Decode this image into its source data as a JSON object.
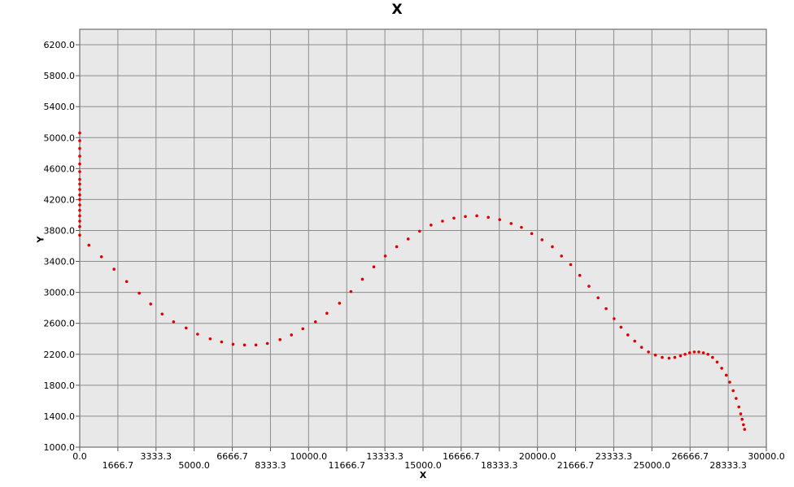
{
  "chart_data": {
    "type": "scatter",
    "title": "X",
    "xlabel": "X",
    "ylabel": "Y",
    "xlim": [
      0,
      30000
    ],
    "ylim": [
      1000,
      6400
    ],
    "grid": true,
    "x_ticks": [
      "0.0",
      "1666.7",
      "3333.3",
      "5000.0",
      "6666.7",
      "8333.3",
      "10000.0",
      "11666.7",
      "13333.3",
      "15000.0",
      "16666.7",
      "18333.3",
      "20000.0",
      "21666.7",
      "23333.3",
      "25000.0",
      "26666.7",
      "28333.3",
      "30000.0"
    ],
    "y_ticks": [
      "1000.0",
      "1400.0",
      "1800.0",
      "2200.0",
      "2600.0",
      "3000.0",
      "3400.0",
      "3800.0",
      "4200.0",
      "4600.0",
      "5000.0",
      "5400.0",
      "5800.0",
      "6200.0"
    ],
    "marker_color": "#e00000",
    "series": [
      {
        "points": [
          [
            0,
            5060
          ],
          [
            0,
            4960
          ],
          [
            0,
            4860
          ],
          [
            0,
            4760
          ],
          [
            0,
            4660
          ],
          [
            0,
            4560
          ],
          [
            0,
            4460
          ],
          [
            0,
            4400
          ],
          [
            0,
            4330
          ],
          [
            0,
            4260
          ],
          [
            0,
            4200
          ],
          [
            0,
            4130
          ],
          [
            0,
            4060
          ],
          [
            0,
            3990
          ],
          [
            0,
            3920
          ],
          [
            0,
            3850
          ],
          [
            0,
            3740
          ],
          [
            400,
            3610
          ],
          [
            950,
            3460
          ],
          [
            1500,
            3300
          ],
          [
            2050,
            3140
          ],
          [
            2600,
            2990
          ],
          [
            3100,
            2850
          ],
          [
            3600,
            2720
          ],
          [
            4100,
            2620
          ],
          [
            4650,
            2540
          ],
          [
            5150,
            2460
          ],
          [
            5700,
            2400
          ],
          [
            6200,
            2360
          ],
          [
            6700,
            2330
          ],
          [
            7200,
            2320
          ],
          [
            7700,
            2320
          ],
          [
            8200,
            2340
          ],
          [
            8750,
            2390
          ],
          [
            9250,
            2450
          ],
          [
            9750,
            2530
          ],
          [
            10300,
            2620
          ],
          [
            10800,
            2730
          ],
          [
            11350,
            2860
          ],
          [
            11850,
            3010
          ],
          [
            12350,
            3170
          ],
          [
            12850,
            3330
          ],
          [
            13350,
            3470
          ],
          [
            13850,
            3590
          ],
          [
            14350,
            3690
          ],
          [
            14850,
            3790
          ],
          [
            15350,
            3870
          ],
          [
            15850,
            3920
          ],
          [
            16350,
            3960
          ],
          [
            16850,
            3980
          ],
          [
            17350,
            3990
          ],
          [
            17850,
            3970
          ],
          [
            18350,
            3940
          ],
          [
            18850,
            3890
          ],
          [
            19300,
            3840
          ],
          [
            19750,
            3760
          ],
          [
            20200,
            3680
          ],
          [
            20650,
            3590
          ],
          [
            21050,
            3470
          ],
          [
            21450,
            3360
          ],
          [
            21850,
            3220
          ],
          [
            22250,
            3080
          ],
          [
            22650,
            2930
          ],
          [
            23000,
            2790
          ],
          [
            23350,
            2660
          ],
          [
            23650,
            2550
          ],
          [
            23950,
            2450
          ],
          [
            24250,
            2370
          ],
          [
            24550,
            2290
          ],
          [
            24850,
            2230
          ],
          [
            25150,
            2190
          ],
          [
            25450,
            2160
          ],
          [
            25750,
            2150
          ],
          [
            26000,
            2160
          ],
          [
            26250,
            2180
          ],
          [
            26450,
            2200
          ],
          [
            26650,
            2220
          ],
          [
            26850,
            2230
          ],
          [
            27050,
            2230
          ],
          [
            27250,
            2220
          ],
          [
            27450,
            2200
          ],
          [
            27650,
            2160
          ],
          [
            27850,
            2100
          ],
          [
            28050,
            2020
          ],
          [
            28250,
            1930
          ],
          [
            28400,
            1840
          ],
          [
            28550,
            1730
          ],
          [
            28680,
            1630
          ],
          [
            28800,
            1520
          ],
          [
            28880,
            1430
          ],
          [
            28940,
            1360
          ],
          [
            29000,
            1290
          ],
          [
            29050,
            1230
          ]
        ]
      }
    ]
  }
}
